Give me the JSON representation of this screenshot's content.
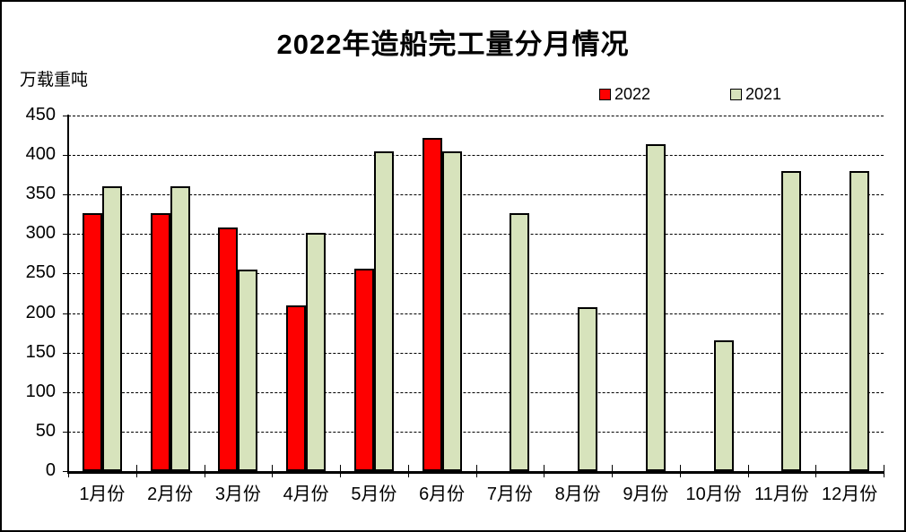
{
  "chart_data": {
    "type": "bar",
    "title": "2022年造船完工量分月情况",
    "ylabel": "万载重吨",
    "xlabel": "",
    "categories": [
      "1月份",
      "2月份",
      "3月份",
      "4月份",
      "5月份",
      "6月份",
      "7月份",
      "8月份",
      "9月份",
      "10月份",
      "11月份",
      "12月份"
    ],
    "series": [
      {
        "name": "2022",
        "color": "#fe0000",
        "values": [
          326,
          326,
          308,
          210,
          256,
          422,
          null,
          null,
          null,
          null,
          null,
          null
        ]
      },
      {
        "name": "2021",
        "color": "#d7e3bc",
        "values": [
          361,
          361,
          255,
          301,
          405,
          405,
          326,
          207,
          414,
          166,
          380,
          380
        ]
      }
    ],
    "ylim": [
      0,
      450
    ],
    "ytick_interval": 50,
    "ytick_labels": [
      "0",
      "50",
      "100",
      "150",
      "200",
      "250",
      "300",
      "350",
      "400",
      "450"
    ],
    "grid": "horizontal-dashed",
    "legend_position": "top-right",
    "axis_color": "#000000",
    "background_color": "#ffffff"
  }
}
